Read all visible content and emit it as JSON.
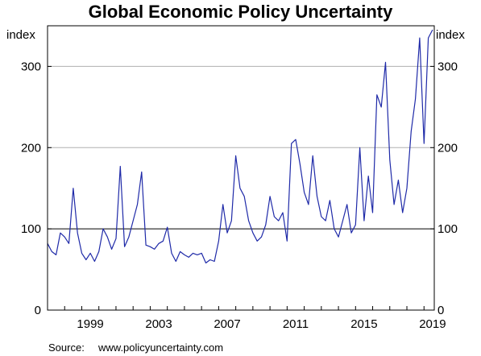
{
  "chart_data": {
    "type": "line",
    "title": "Global Economic Policy Uncertainty",
    "ylabel_left": "index",
    "ylabel_right": "index",
    "ylim": [
      0,
      350
    ],
    "yticks": [
      0,
      100,
      200,
      300
    ],
    "xlim": [
      1997.0,
      2019.6
    ],
    "xticks": [
      1999,
      2003,
      2007,
      2011,
      2015,
      2019
    ],
    "grid": "horizontal",
    "reference_line": 100,
    "colors": {
      "series": "#1f2aa8",
      "grid": "#b0b0b0",
      "reference": "#000000"
    },
    "series": [
      {
        "x": [
          1997.0,
          1997.25,
          1997.5,
          1997.75,
          1998.0,
          1998.25,
          1998.5,
          1998.75,
          1999.0,
          1999.25,
          1999.5,
          1999.75,
          2000.0,
          2000.25,
          2000.5,
          2000.75,
          2001.0,
          2001.25,
          2001.5,
          2001.75,
          2002.0,
          2002.25,
          2002.5,
          2002.75,
          2003.0,
          2003.25,
          2003.5,
          2003.75,
          2004.0,
          2004.25,
          2004.5,
          2004.75,
          2005.0,
          2005.25,
          2005.5,
          2005.75,
          2006.0,
          2006.25,
          2006.5,
          2006.75,
          2007.0,
          2007.25,
          2007.5,
          2007.75,
          2008.0,
          2008.25,
          2008.5,
          2008.75,
          2009.0,
          2009.25,
          2009.5,
          2009.75,
          2010.0,
          2010.25,
          2010.5,
          2010.75,
          2011.0,
          2011.25,
          2011.5,
          2011.75,
          2012.0,
          2012.25,
          2012.5,
          2012.75,
          2013.0,
          2013.25,
          2013.5,
          2013.75,
          2014.0,
          2014.25,
          2014.5,
          2014.75,
          2015.0,
          2015.25,
          2015.5,
          2015.75,
          2016.0,
          2016.25,
          2016.5,
          2016.75,
          2017.0,
          2017.25,
          2017.5,
          2017.75,
          2018.0,
          2018.25,
          2018.5,
          2018.75,
          2019.0,
          2019.25,
          2019.5
        ],
        "values": [
          82,
          72,
          68,
          95,
          90,
          82,
          150,
          95,
          70,
          62,
          70,
          60,
          72,
          100,
          90,
          75,
          88,
          177,
          78,
          90,
          110,
          130,
          170,
          80,
          78,
          75,
          82,
          85,
          102,
          70,
          60,
          72,
          68,
          65,
          70,
          68,
          70,
          58,
          62,
          60,
          85,
          130,
          95,
          110,
          190,
          150,
          140,
          110,
          95,
          85,
          90,
          105,
          140,
          115,
          110,
          120,
          85,
          205,
          210,
          180,
          145,
          130,
          190,
          140,
          115,
          110,
          135,
          100,
          90,
          110,
          130,
          95,
          105,
          200,
          110,
          165,
          120,
          265,
          250,
          305,
          185,
          130,
          160,
          120,
          150,
          220,
          260,
          335,
          205,
          335,
          345
        ]
      }
    ],
    "source_label": "Source:",
    "source_text": "www.policyuncertainty.com"
  }
}
